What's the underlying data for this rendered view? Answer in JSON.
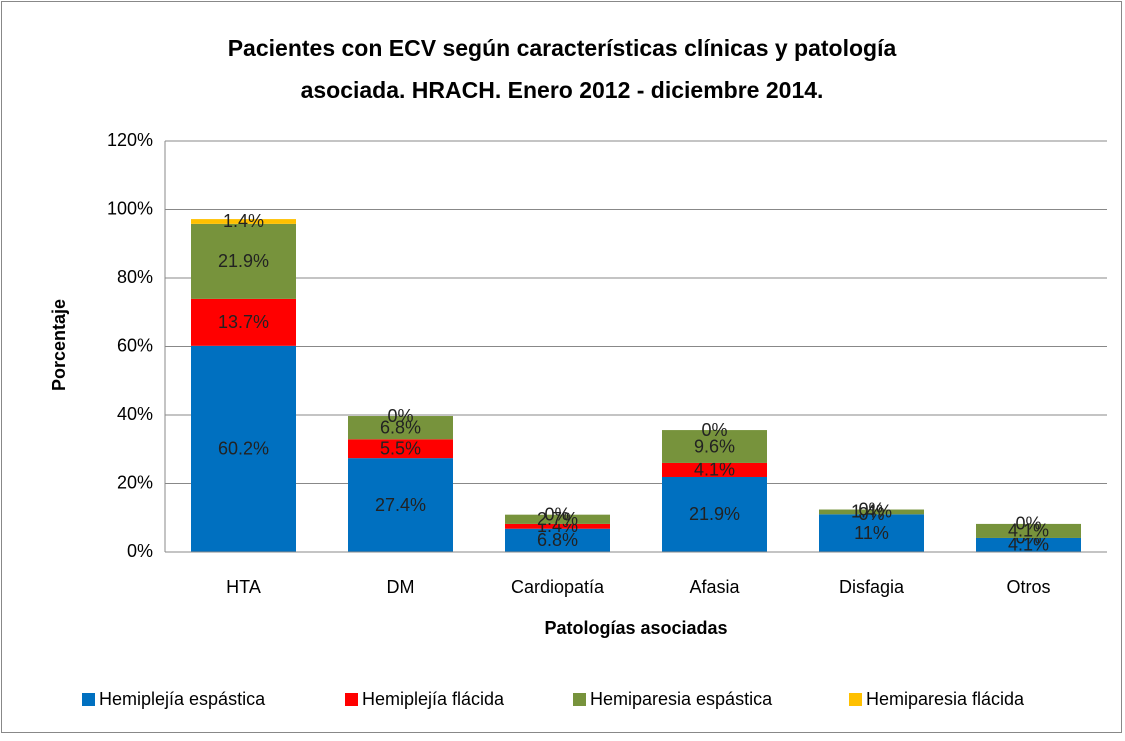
{
  "chart_data": {
    "type": "stacked_bar",
    "title": "Pacientes con ECV según características clínicas y patología",
    "subtitle": "asociada. HRACH. Enero 2012 - diciembre 2014.",
    "x_label": "Patologías asociadas",
    "y_label": "Porcentaje",
    "categories": [
      "HTA",
      "DM",
      "Cardiopatía",
      "Afasia",
      "Disfagia",
      "Otros"
    ],
    "series": [
      {
        "name": "Hemiplejía espástica",
        "color": "#0070C0",
        "values": [
          60.2,
          27.4,
          6.8,
          21.9,
          11,
          4.1
        ],
        "value_labels": [
          "60.2%",
          "27.4%",
          "6.8%",
          "21.9%",
          "11%",
          "4.1%"
        ]
      },
      {
        "name": "Hemiplejía flácida",
        "color": "#FF0000",
        "values": [
          13.7,
          5.5,
          1.4,
          4.1,
          0,
          0
        ],
        "value_labels": [
          "13.7%",
          "5.5%",
          "1.4%",
          "4.1%",
          "0%",
          "0%"
        ]
      },
      {
        "name": "Hemiparesia espástica",
        "color": "#77933C",
        "values": [
          21.9,
          6.8,
          2.7,
          9.6,
          1.4,
          4.1
        ],
        "value_labels": [
          "21.9%",
          "6.8%",
          "2.7%",
          "9.6%",
          "1.4%",
          "4.1%"
        ]
      },
      {
        "name": "Hemiparesia flácida",
        "color": "#FFC000",
        "values": [
          1.4,
          0,
          0,
          0,
          0,
          0
        ],
        "value_labels": [
          "1.4%",
          "0%",
          "0%",
          "0%",
          "0%",
          "0%"
        ]
      }
    ],
    "ylim": [
      0,
      120
    ],
    "yticks": [
      {
        "value": 0,
        "label": "0%"
      },
      {
        "value": 20,
        "label": "20%"
      },
      {
        "value": 40,
        "label": "40%"
      },
      {
        "value": 60,
        "label": "60%"
      },
      {
        "value": 80,
        "label": "80%"
      },
      {
        "value": 100,
        "label": "100%"
      },
      {
        "value": 120,
        "label": "120%"
      }
    ],
    "grid": true,
    "legend": "bottom"
  }
}
